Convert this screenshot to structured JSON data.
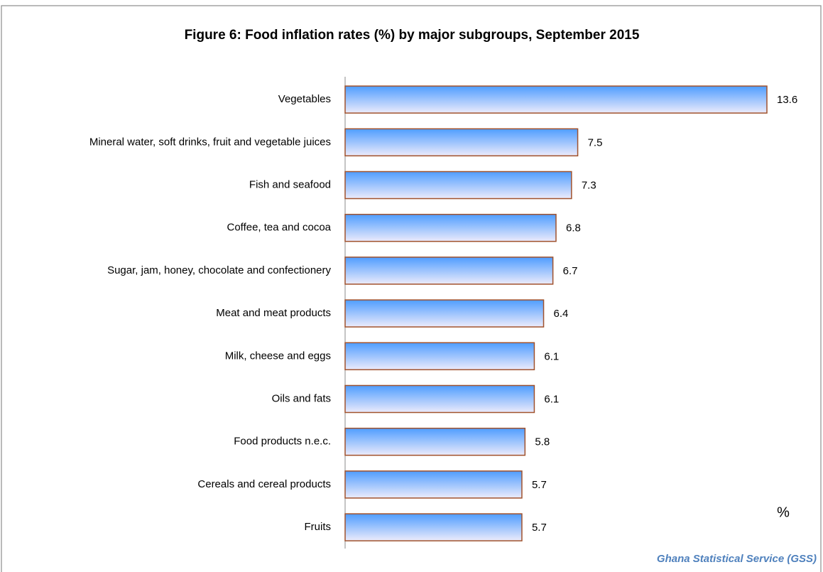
{
  "chart_data": {
    "type": "bar",
    "orientation": "horizontal",
    "title": "Figure 6: Food inflation rates (%) by  major subgroups, September  2015",
    "categories": [
      "Vegetables",
      "Mineral water, soft drinks, fruit and vegetable juices",
      "Fish and seafood",
      "Coffee, tea and cocoa",
      "Sugar, jam, honey, chocolate and confectionery",
      "Meat and meat products",
      "Milk, cheese and eggs",
      "Oils and fats",
      "Food products n.e.c.",
      "Cereals and cereal products",
      "Fruits"
    ],
    "values": [
      13.6,
      7.5,
      7.3,
      6.8,
      6.7,
      6.4,
      6.1,
      6.1,
      5.8,
      5.7,
      5.7
    ],
    "color": "#5aa5ff",
    "edge_color": "#a0522d",
    "annotation": "%",
    "source": "Ghana Statistical Service (GSS)"
  }
}
